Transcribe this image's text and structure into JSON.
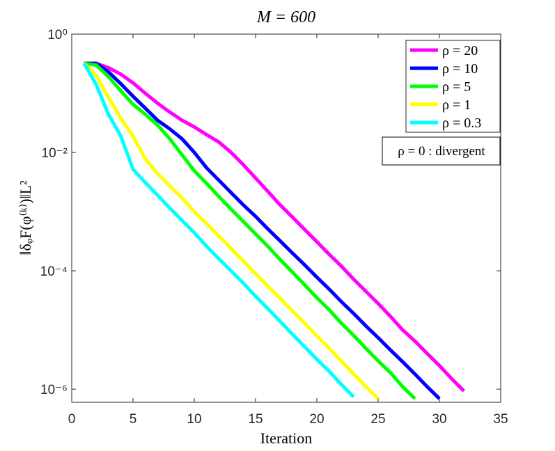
{
  "chart_data": {
    "type": "line",
    "title": "M = 600",
    "xlabel": "Iteration",
    "ylabel": "‖δᵩF(φ⁽ᵏ⁾)‖L²",
    "annotation": "ρ = 0 : divergent",
    "xlim": [
      0,
      35
    ],
    "xticks": [
      0,
      5,
      10,
      15,
      20,
      25,
      30,
      35
    ],
    "ylim": [
      6e-07,
      1
    ],
    "ylog": true,
    "yticks": [
      {
        "value": 1,
        "label": "10⁰"
      },
      {
        "value": 0.01,
        "label": "10⁻²"
      },
      {
        "value": 0.0001,
        "label": "10⁻⁴"
      },
      {
        "value": 1e-06,
        "label": "10⁻⁶"
      }
    ],
    "legend": "top-right",
    "series": [
      {
        "name": "ρ = 20",
        "color": "#ff00ff",
        "x": [
          1,
          2,
          3,
          4,
          5,
          6,
          7,
          8,
          9,
          10,
          11,
          12,
          13,
          14,
          15,
          16,
          17,
          18,
          19,
          20,
          21,
          22,
          23,
          24,
          25,
          26,
          27,
          28,
          29,
          30,
          31,
          32
        ],
        "values": [
          0.32,
          0.32,
          0.27,
          0.21,
          0.15,
          0.1,
          0.068,
          0.048,
          0.035,
          0.027,
          0.02,
          0.015,
          0.01,
          0.0062,
          0.0037,
          0.0022,
          0.0013,
          0.00081,
          0.0005,
          0.00031,
          0.00019,
          0.00012,
          7.2e-05,
          4.5e-05,
          2.8e-05,
          1.7e-05,
          1e-05,
          6.5e-06,
          4e-06,
          2.5e-06,
          1.5e-06,
          9.3e-07
        ]
      },
      {
        "name": "ρ = 10",
        "color": "#0000ff",
        "x": [
          1,
          2,
          3,
          4,
          5,
          6,
          7,
          8,
          9,
          10,
          11,
          12,
          13,
          14,
          15,
          16,
          17,
          18,
          19,
          20,
          21,
          22,
          23,
          24,
          25,
          26,
          27,
          28,
          29,
          30
        ],
        "values": [
          0.32,
          0.32,
          0.23,
          0.145,
          0.089,
          0.056,
          0.035,
          0.025,
          0.017,
          0.01,
          0.0055,
          0.0034,
          0.0021,
          0.0013,
          0.00083,
          0.00051,
          0.00032,
          0.0002,
          0.000126,
          7.8e-05,
          4.9e-05,
          3e-05,
          1.9e-05,
          1.17e-05,
          7.4e-06,
          4.6e-06,
          2.9e-06,
          1.8e-06,
          1.1e-06,
          6.9e-07
        ]
      },
      {
        "name": "ρ = 5",
        "color": "#00ff00",
        "x": [
          1,
          2,
          3,
          4,
          5,
          6,
          7,
          8,
          9,
          10,
          11,
          12,
          13,
          14,
          15,
          16,
          17,
          18,
          19,
          20,
          21,
          22,
          23,
          24,
          25,
          26,
          27,
          28
        ],
        "values": [
          0.32,
          0.3,
          0.19,
          0.11,
          0.065,
          0.044,
          0.029,
          0.017,
          0.0091,
          0.0049,
          0.003,
          0.0018,
          0.0011,
          0.00068,
          0.00042,
          0.00026,
          0.000155,
          9.5e-05,
          5.8e-05,
          3.5e-05,
          2.2e-05,
          1.3e-05,
          8.1e-06,
          4.9e-06,
          3e-06,
          1.9e-06,
          1.1e-06,
          6.9e-07
        ]
      },
      {
        "name": "ρ = 1",
        "color": "#ffff00",
        "x": [
          1,
          2,
          3,
          4,
          5,
          6,
          7,
          8,
          9,
          10,
          11,
          12,
          13,
          14,
          15,
          16,
          17,
          18,
          19,
          20,
          21,
          22,
          23,
          24,
          25
        ],
        "values": [
          0.32,
          0.2,
          0.085,
          0.038,
          0.019,
          0.0078,
          0.0044,
          0.0027,
          0.0017,
          0.001,
          0.00063,
          0.00039,
          0.00024,
          0.000145,
          8.9e-05,
          5.5e-05,
          3.4e-05,
          2.1e-05,
          1.3e-05,
          7.9e-06,
          4.9e-06,
          3e-06,
          1.8e-06,
          1.1e-06,
          6.9e-07
        ]
      },
      {
        "name": "ρ = 0.3",
        "color": "#00ffff",
        "x": [
          1,
          2,
          3,
          4,
          5,
          6,
          7,
          8,
          9,
          10,
          11,
          12,
          13,
          14,
          15,
          16,
          17,
          18,
          19,
          20,
          21,
          22,
          23
        ],
        "values": [
          0.32,
          0.14,
          0.044,
          0.019,
          0.0052,
          0.0031,
          0.0019,
          0.00115,
          0.00071,
          0.00044,
          0.00026,
          0.00016,
          0.0001,
          6.2e-05,
          3.7e-05,
          2.3e-05,
          1.4e-05,
          8.5e-06,
          5.2e-06,
          3.2e-06,
          2e-06,
          1.2e-06,
          7.4e-07
        ]
      }
    ]
  }
}
